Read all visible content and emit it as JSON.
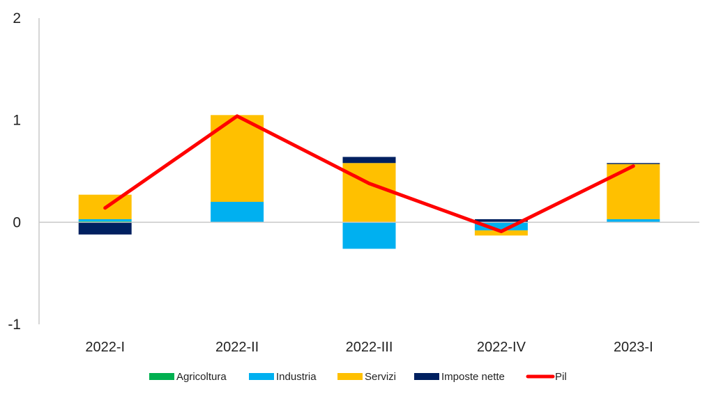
{
  "chart_data": {
    "type": "bar",
    "stacked": true,
    "categories": [
      "2022-I",
      "2022-II",
      "2022-III",
      "2022-IV",
      "2023-I"
    ],
    "series": [
      {
        "name": "Agricoltura",
        "kind": "bar",
        "color": "#00b050",
        "values": [
          0.01,
          0.0,
          0.0,
          0.0,
          0.0
        ]
      },
      {
        "name": "Industria",
        "kind": "bar",
        "color": "#00b0f0",
        "values": [
          0.02,
          0.2,
          -0.26,
          -0.08,
          0.03
        ]
      },
      {
        "name": "Servizi",
        "kind": "bar",
        "color": "#ffc000",
        "values": [
          0.24,
          0.85,
          0.58,
          -0.05,
          0.54
        ]
      },
      {
        "name": "Imposte nette",
        "kind": "bar",
        "color": "#002060",
        "values": [
          -0.12,
          0.0,
          0.06,
          0.03,
          0.01
        ]
      },
      {
        "name": "Pil",
        "kind": "line",
        "color": "#ff0000",
        "values": [
          0.14,
          1.04,
          0.38,
          -0.09,
          0.55
        ]
      }
    ],
    "ylim": [
      -1,
      2
    ],
    "yticks": [
      "-1",
      "0",
      "1",
      "2"
    ],
    "grid": false,
    "legend_position": "bottom"
  }
}
